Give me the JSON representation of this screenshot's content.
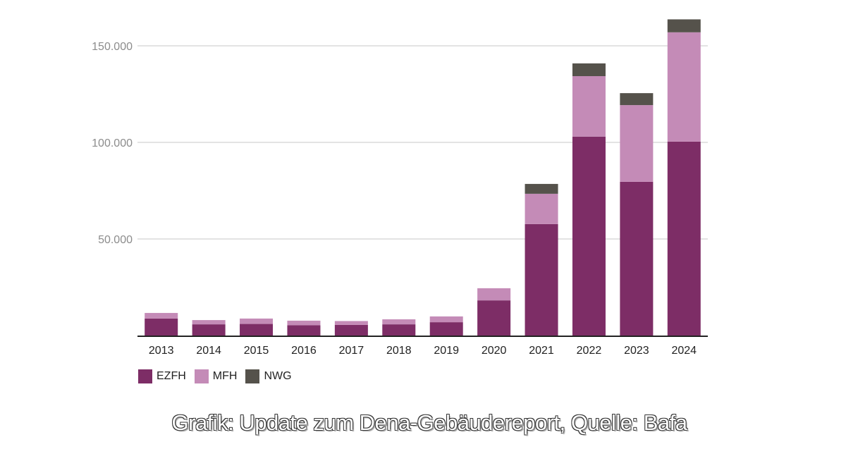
{
  "chart_data": {
    "type": "bar",
    "stacked": true,
    "title": "",
    "xlabel": "",
    "ylabel": "",
    "categories": [
      "2013",
      "2014",
      "2015",
      "2016",
      "2017",
      "2018",
      "2019",
      "2020",
      "2021",
      "2022",
      "2023",
      "2024"
    ],
    "series": [
      {
        "name": "EZFH",
        "color": "#7d2d66",
        "values": [
          8800,
          5800,
          6000,
          5300,
          5500,
          5800,
          6900,
          18200,
          57700,
          103000,
          79600,
          100400
        ]
      },
      {
        "name": "MFH",
        "color": "#c48bb7",
        "values": [
          2900,
          2200,
          2800,
          2400,
          2000,
          2600,
          3000,
          6300,
          15700,
          31300,
          39700,
          56600
        ]
      },
      {
        "name": "NWG",
        "color": "#55524b",
        "values": [
          0,
          0,
          0,
          0,
          0,
          0,
          0,
          0,
          5100,
          6600,
          6200,
          6700
        ]
      }
    ],
    "ylim": [
      0,
      150000
    ],
    "yticks": [
      50000,
      100000,
      150000
    ],
    "ytick_labels": [
      "50.000",
      "100.000",
      "150.000"
    ],
    "grid": true,
    "legend_position": "bottom-left"
  },
  "caption": "Grafik: Update zum Dena-Gebäudereport, Quelle: Bafa"
}
